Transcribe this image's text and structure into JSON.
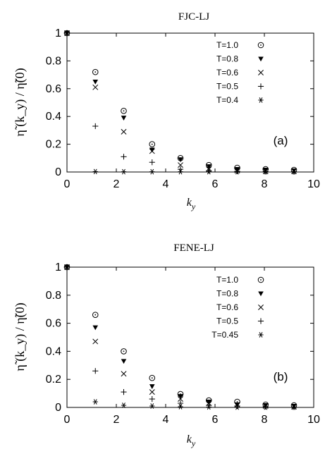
{
  "chart_data": [
    {
      "type": "scatter",
      "title": "FJC-LJ",
      "panel_label": "(a)",
      "xlabel": "k",
      "xlabel_sub": "y",
      "ylabel": "η̃ (k_y) / η̃(0)",
      "xlim": [
        0,
        10
      ],
      "ylim": [
        0,
        1
      ],
      "x_ticks": [
        "0",
        "2",
        "4",
        "6",
        "8",
        "10"
      ],
      "y_ticks": [
        "0",
        "0.2",
        "0.4",
        "0.6",
        "0.8",
        "1"
      ],
      "legend_position": "top-right",
      "x": [
        0,
        1.15,
        2.3,
        3.45,
        4.6,
        5.75,
        6.9,
        8.05,
        9.2
      ],
      "series": [
        {
          "name": "T=1.0",
          "marker": "circle-dot",
          "values": [
            1.0,
            0.72,
            0.44,
            0.2,
            0.1,
            0.05,
            0.03,
            0.02,
            0.015
          ]
        },
        {
          "name": "T=0.8",
          "marker": "triangle-down",
          "values": [
            1.0,
            0.65,
            0.39,
            0.16,
            0.09,
            0.04,
            0.02,
            0.015,
            0.01
          ]
        },
        {
          "name": "T=0.6",
          "marker": "x",
          "values": [
            1.0,
            0.61,
            0.29,
            0.15,
            0.05,
            0.02,
            0.01,
            0.005,
            0.005
          ]
        },
        {
          "name": "T=0.5",
          "marker": "plus",
          "values": [
            1.0,
            0.33,
            0.11,
            0.07,
            0.02,
            0.01,
            0.005,
            0.003,
            0.002
          ]
        },
        {
          "name": "T=0.4",
          "marker": "asterisk",
          "values": [
            1.0,
            0.003,
            0.002,
            0.002,
            0.002,
            0.002,
            0.002,
            0.002,
            0.002
          ]
        }
      ]
    },
    {
      "type": "scatter",
      "title": "FENE-LJ",
      "panel_label": "(b)",
      "xlabel": "k",
      "xlabel_sub": "y",
      "ylabel": "η̃ (k_y) / η̃(0)",
      "xlim": [
        0,
        10
      ],
      "ylim": [
        0,
        1
      ],
      "x_ticks": [
        "0",
        "2",
        "4",
        "6",
        "8",
        "10"
      ],
      "y_ticks": [
        "0",
        "0.2",
        "0.4",
        "0.6",
        "0.8",
        "1"
      ],
      "legend_position": "top-right",
      "x": [
        0,
        1.15,
        2.3,
        3.45,
        4.6,
        5.75,
        6.9,
        8.05,
        9.2
      ],
      "series": [
        {
          "name": "T=1.0",
          "marker": "circle-dot",
          "values": [
            1.0,
            0.66,
            0.4,
            0.21,
            0.095,
            0.05,
            0.04,
            0.02,
            0.015
          ]
        },
        {
          "name": "T=0.8",
          "marker": "triangle-down",
          "values": [
            1.0,
            0.57,
            0.33,
            0.15,
            0.08,
            0.04,
            0.02,
            0.015,
            0.01
          ]
        },
        {
          "name": "T=0.6",
          "marker": "x",
          "values": [
            1.0,
            0.47,
            0.24,
            0.11,
            0.06,
            0.03,
            0.02,
            0.01,
            0.005
          ]
        },
        {
          "name": "T=0.5",
          "marker": "plus",
          "values": [
            1.0,
            0.26,
            0.11,
            0.06,
            0.03,
            0.015,
            0.01,
            0.005,
            0.003
          ]
        },
        {
          "name": "T=0.45",
          "marker": "asterisk",
          "values": [
            1.0,
            0.04,
            0.015,
            0.01,
            0.005,
            0.003,
            0.002,
            0.002,
            0.002
          ]
        }
      ]
    }
  ]
}
